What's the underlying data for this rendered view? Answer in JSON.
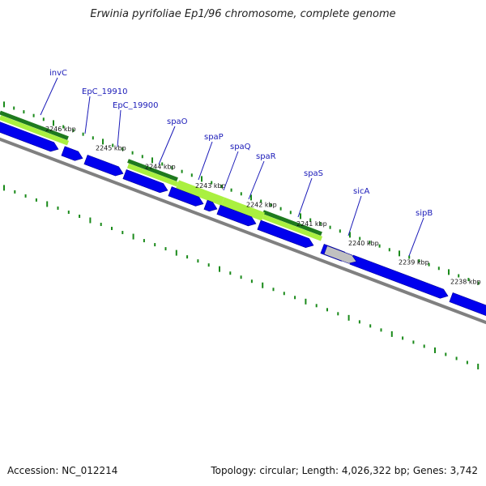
{
  "title": "Erwinia pyrifoliae Ep1/96 chromosome, complete genome",
  "footer": {
    "accession": "Accession: NC_012214",
    "topology": "Topology: circular; Length: 4,026,322 bp; Genes: 3,742"
  },
  "gene_labels": [
    "invC",
    "EpC_19910",
    "EpC_19900",
    "spaO",
    "spaP",
    "spaQ",
    "spaR",
    "spaS",
    "sicA",
    "sipB"
  ],
  "kbp_labels": [
    "2246 kbp",
    "2245 kbp",
    "2244 kbp",
    "2243 kbp",
    "2242 kbp",
    "2241 kbp",
    "2240 kbp",
    "2239 kbp",
    "2238 kbp"
  ],
  "colors": {
    "cds": "#0000ee",
    "gc_dark": "#1e7a1e",
    "gc_light": "#aaf040",
    "backbone": "#808080",
    "tick": "#1a8a1a",
    "label": "#1a1ab8",
    "grey_feature": "#c0c0c0"
  }
}
